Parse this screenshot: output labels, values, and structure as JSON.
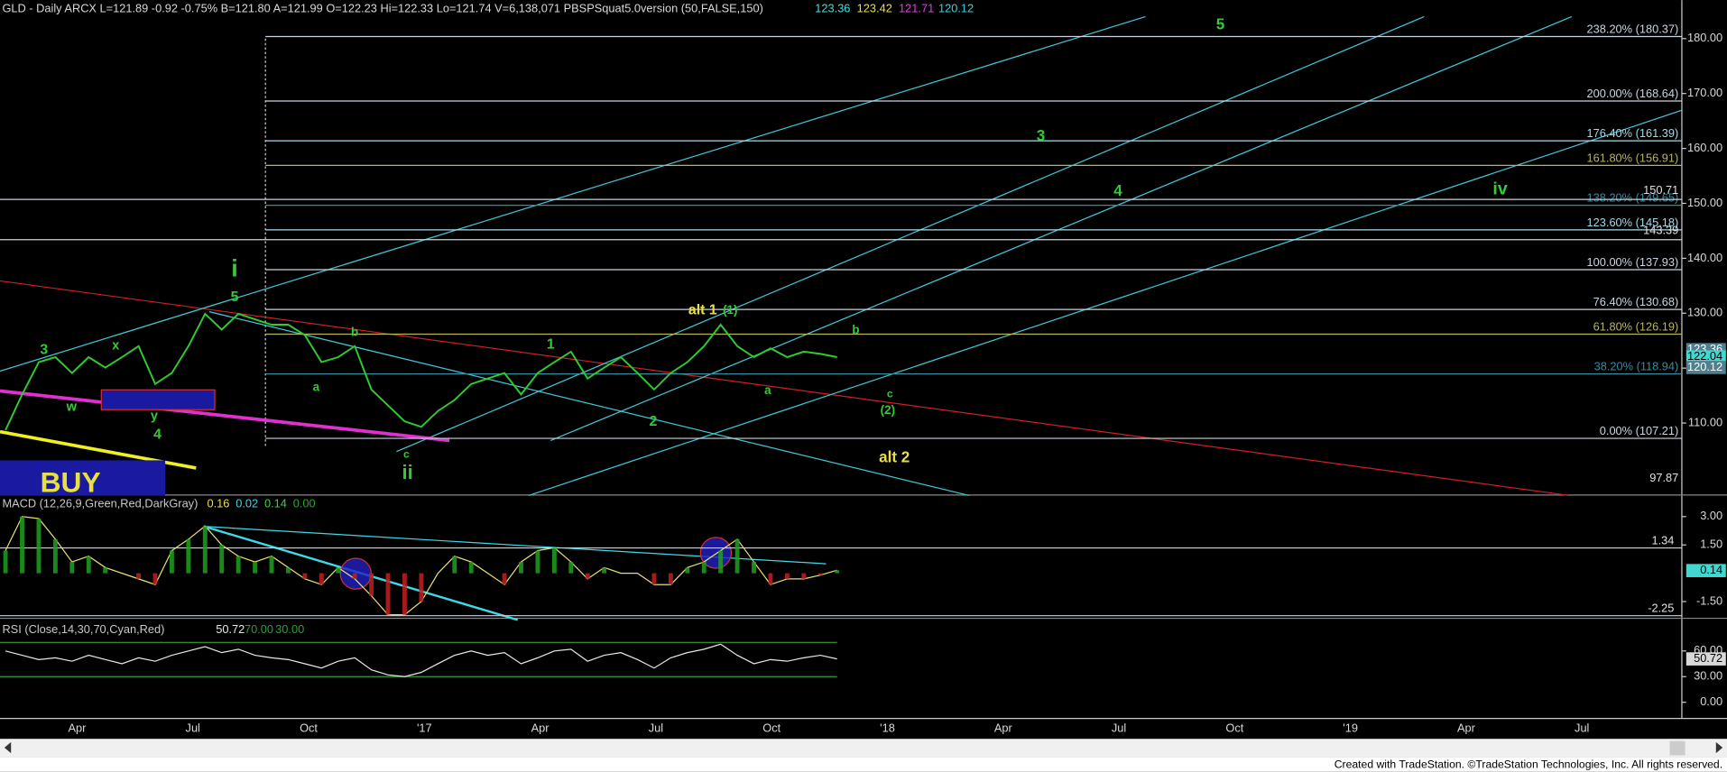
{
  "chart_data": [
    {
      "type": "line",
      "title": "GLD - Daily  ARCX  L=121.89  -0.92  -0.75%  B=121.80  A=121.99  O=122.23  Hi=122.33  Lo=121.74  V=6,138,071  PBSPSquat5.0version (50,FALSE,150)",
      "readings": [
        "123.36",
        "123.42",
        "121.71",
        "120.12"
      ],
      "color": "#2ecc2e",
      "values": [
        108.7,
        115.2,
        121.1,
        122.0,
        119.1,
        122.0,
        120.1,
        122.0,
        124.0,
        117.1,
        119.1,
        124.0,
        129.9,
        127.0,
        129.9,
        128.9,
        127.9,
        127.9,
        126.0,
        121.1,
        122.0,
        124.0,
        116.1,
        113.2,
        110.3,
        109.3,
        112.2,
        114.2,
        117.1,
        118.1,
        119.1,
        115.2,
        119.1,
        121.1,
        123.0,
        118.1,
        120.1,
        122.0,
        119.1,
        116.1,
        119.1,
        121.1,
        124.0,
        127.9,
        124.0,
        122.0,
        123.6,
        122.0,
        123.0,
        122.6,
        122.0
      ],
      "ylim": [
        97,
        187
      ],
      "yticks": [
        {
          "value": 110,
          "label": "110.00"
        },
        {
          "value": 120,
          "label": "120.00"
        },
        {
          "value": 130,
          "label": "130.00"
        },
        {
          "value": 140,
          "label": "140.00"
        },
        {
          "value": 150,
          "label": "150.00"
        },
        {
          "value": 160,
          "label": "160.00"
        },
        {
          "value": 170,
          "label": "170.00"
        },
        {
          "value": 180,
          "label": "180.00"
        }
      ],
      "levels": [
        {
          "value": 180.37,
          "label": "238.20% (180.37)",
          "color": "#c8d4e0"
        },
        {
          "value": 168.64,
          "label": "200.00% (168.64)",
          "color": "#c8d4e0"
        },
        {
          "value": 161.39,
          "label": "176.40% (161.39)",
          "color": "#a8d8e8"
        },
        {
          "value": 156.91,
          "label": "161.80% (156.91)",
          "color": "#b8b460"
        },
        {
          "value": 149.65,
          "label": "138.20% (149.65)",
          "color": "#3a8aa0"
        },
        {
          "value": 145.18,
          "label": "123.60% (145.18)",
          "color": "#a8d8e8"
        },
        {
          "value": 137.93,
          "label": "100.00% (137.93)",
          "color": "#c8d4e0"
        },
        {
          "value": 130.68,
          "label": "76.40% (130.68)",
          "color": "#c8d4e0"
        },
        {
          "value": 126.19,
          "label": "61.80% (126.19)",
          "color": "#b8b460"
        },
        {
          "value": 118.94,
          "label": "38.20% (118.94)",
          "color": "#3a8aa0"
        },
        {
          "value": 107.21,
          "label": "0.00% (107.21)",
          "color": "#c8d4e0"
        }
      ],
      "price_labels": [
        {
          "value": 150.71,
          "label": "150.71"
        },
        {
          "value": 143.39,
          "label": "143.39"
        },
        {
          "value": 97.87,
          "label": "97.87"
        }
      ],
      "last_labels": [
        {
          "value": 123.36,
          "label": "123.36"
        },
        {
          "value": 122.04,
          "label": "122.04"
        },
        {
          "value": 120.12,
          "label": "120.12"
        }
      ],
      "annotations": [
        "i",
        "5",
        "3",
        "x",
        "w",
        "y",
        "4",
        "ii",
        "c",
        "a",
        "b",
        "1",
        "2",
        "alt 1",
        "(1)",
        "a",
        "b",
        "c",
        "(2)",
        "alt 2",
        "3",
        "4",
        "5",
        "iv",
        "BUY"
      ]
    },
    {
      "type": "line",
      "title": "MACD (12,26,9,Green,Red,DarkGray)",
      "readings": [
        "0.16",
        "0.02",
        "0.14",
        "0.00"
      ],
      "color": "#e8e070",
      "values": [
        1.2,
        3.0,
        2.9,
        1.8,
        0.6,
        0.9,
        0.3,
        0,
        -0.3,
        -0.6,
        1.2,
        1.8,
        2.5,
        1.5,
        0.9,
        0.6,
        0.9,
        0.3,
        -0.3,
        -0.6,
        0.3,
        -0.3,
        -1.2,
        -2.2,
        -2.2,
        -1.5,
        0,
        0.9,
        0.6,
        0,
        -0.6,
        0.6,
        1.2,
        1.35,
        0.6,
        -0.3,
        0.3,
        0,
        0,
        -0.6,
        -0.6,
        0.3,
        0.6,
        1.2,
        1.8,
        0.6,
        -0.6,
        -0.3,
        -0.3,
        -0.1,
        0.16
      ],
      "ylim": [
        -2.3,
        4.0
      ],
      "yticks": [
        {
          "value": 3,
          "label": "3.00"
        },
        {
          "value": 1.5,
          "label": "1.50"
        },
        {
          "value": -1.5,
          "label": "-1.50"
        }
      ],
      "hlines": [
        {
          "value": 1.34,
          "label": "1.34"
        },
        {
          "value": -2.25,
          "label": "-2.25"
        }
      ],
      "last_labels": [
        {
          "value": 0.14,
          "label": "0.14"
        }
      ]
    },
    {
      "type": "line",
      "title": "RSI (Close,14,30,70,Cyan,Red)",
      "readings": [
        "50.72",
        "70.00",
        "30.00"
      ],
      "color": "#e8e8e8",
      "values": [
        60,
        55,
        50,
        52,
        48,
        55,
        50,
        45,
        52,
        48,
        55,
        60,
        65,
        58,
        62,
        55,
        52,
        50,
        45,
        40,
        48,
        52,
        38,
        32,
        30,
        35,
        45,
        55,
        60,
        55,
        58,
        45,
        52,
        60,
        62,
        48,
        55,
        58,
        50,
        40,
        52,
        58,
        62,
        68,
        55,
        45,
        50,
        48,
        52,
        55,
        50.72
      ],
      "ylim": [
        -17,
        95
      ],
      "yticks": [
        {
          "value": 60,
          "label": "60.00"
        },
        {
          "value": 30,
          "label": "30.00"
        },
        {
          "value": 0,
          "label": "0.00"
        }
      ],
      "bands": [
        70,
        30
      ],
      "last_labels": [
        {
          "value": 50.72,
          "label": "50.72"
        }
      ]
    }
  ],
  "x_labels": [
    "Apr",
    "Jul",
    "Oct",
    "'17",
    "Apr",
    "Jul",
    "Oct",
    "'18",
    "Apr",
    "Jul",
    "Oct",
    "'19",
    "Apr",
    "Jul"
  ],
  "footer": "Created with TradeStation. ©TradeStation Technologies, Inc. All rights reserved."
}
